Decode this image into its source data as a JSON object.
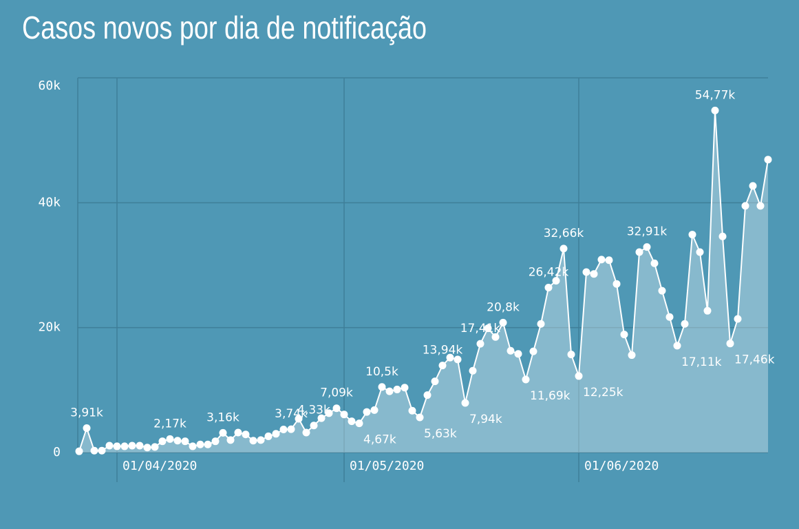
{
  "chart_data": {
    "type": "line",
    "title": "Casos novos por dia de notificação",
    "x": [
      "27/03/2020",
      "28/03/2020",
      "29/03/2020",
      "30/03/2020",
      "31/03/2020",
      "01/04/2020",
      "02/04/2020",
      "03/04/2020",
      "04/04/2020",
      "05/04/2020",
      "06/04/2020",
      "07/04/2020",
      "08/04/2020",
      "09/04/2020",
      "10/04/2020",
      "11/04/2020",
      "12/04/2020",
      "13/04/2020",
      "14/04/2020",
      "15/04/2020",
      "16/04/2020",
      "17/04/2020",
      "18/04/2020",
      "19/04/2020",
      "20/04/2020",
      "21/04/2020",
      "22/04/2020",
      "23/04/2020",
      "24/04/2020",
      "25/04/2020",
      "26/04/2020",
      "27/04/2020",
      "28/04/2020",
      "29/04/2020",
      "30/04/2020",
      "01/05/2020",
      "02/05/2020",
      "03/05/2020",
      "04/05/2020",
      "05/05/2020",
      "06/05/2020",
      "07/05/2020",
      "08/05/2020",
      "09/05/2020",
      "10/05/2020",
      "11/05/2020",
      "12/05/2020",
      "13/05/2020",
      "14/05/2020",
      "15/05/2020",
      "16/05/2020",
      "17/05/2020",
      "18/05/2020",
      "19/05/2020",
      "20/05/2020",
      "21/05/2020",
      "22/05/2020",
      "23/05/2020",
      "24/05/2020",
      "25/05/2020",
      "26/05/2020",
      "27/05/2020",
      "28/05/2020",
      "29/05/2020",
      "30/05/2020",
      "31/05/2020",
      "01/06/2020",
      "02/06/2020",
      "03/06/2020",
      "04/06/2020",
      "05/06/2020",
      "06/06/2020",
      "07/06/2020",
      "08/06/2020",
      "09/06/2020",
      "10/06/2020",
      "11/06/2020",
      "12/06/2020",
      "13/06/2020",
      "14/06/2020",
      "15/06/2020",
      "16/06/2020",
      "17/06/2020",
      "18/06/2020",
      "19/06/2020",
      "20/06/2020",
      "21/06/2020",
      "22/06/2020",
      "23/06/2020",
      "24/06/2020",
      "25/06/2020",
      "26/06/2020"
    ],
    "values": [
      200,
      3910,
      300,
      300,
      1100,
      1000,
      1000,
      1100,
      1100,
      800,
      900,
      1800,
      2170,
      1900,
      1800,
      1000,
      1300,
      1300,
      1800,
      3160,
      2000,
      3200,
      2900,
      1900,
      2000,
      2600,
      3000,
      3700,
      3740,
      5400,
      3200,
      4330,
      5500,
      6300,
      7090,
      6100,
      5000,
      4670,
      6500,
      6800,
      10500,
      9800,
      10100,
      10400,
      6700,
      5630,
      9200,
      11400,
      13940,
      15200,
      14900,
      7940,
      13100,
      17410,
      19900,
      18500,
      20800,
      16300,
      15800,
      11690,
      16200,
      20600,
      26420,
      27500,
      32660,
      15700,
      12250,
      28900,
      28600,
      30900,
      30800,
      27000,
      18900,
      15600,
      32100,
      32910,
      30300,
      25900,
      21700,
      17110,
      20600,
      34900,
      32100,
      22700,
      54770,
      34600,
      17460,
      21400,
      39500,
      42700,
      39500,
      46900
    ],
    "value_labels": [
      null,
      "3,91k",
      null,
      null,
      null,
      null,
      null,
      null,
      null,
      null,
      null,
      null,
      "2,17k",
      null,
      null,
      null,
      null,
      null,
      null,
      "3,16k",
      null,
      null,
      null,
      null,
      null,
      null,
      null,
      null,
      "3,74k",
      null,
      null,
      "4,33k",
      null,
      null,
      "7,09k",
      null,
      null,
      "4,67k",
      null,
      null,
      "10,5k",
      null,
      null,
      null,
      null,
      "5,63k",
      null,
      null,
      "13,94k",
      null,
      null,
      "7,94k",
      null,
      "17,41k",
      null,
      null,
      "20,8k",
      null,
      null,
      "11,69k",
      null,
      null,
      "26,42k",
      null,
      "32,66k",
      null,
      "12,25k",
      null,
      null,
      null,
      null,
      null,
      null,
      null,
      null,
      "32,91k",
      null,
      null,
      null,
      "17,11k",
      null,
      null,
      null,
      null,
      "54,77k",
      null,
      "17,46k",
      null,
      null,
      null,
      null,
      null
    ],
    "color": "#ffffff",
    "ylim": [
      0,
      60000
    ],
    "yticks": [
      0,
      {
        "value": 20000,
        "label": "20k"
      },
      {
        "value": 40000,
        "label": "40k"
      },
      {
        "value": 60000,
        "label": "60k"
      }
    ],
    "xticks": [
      "01/04/2020",
      "01/05/2020",
      "01/06/2020"
    ],
    "grid": true
  }
}
